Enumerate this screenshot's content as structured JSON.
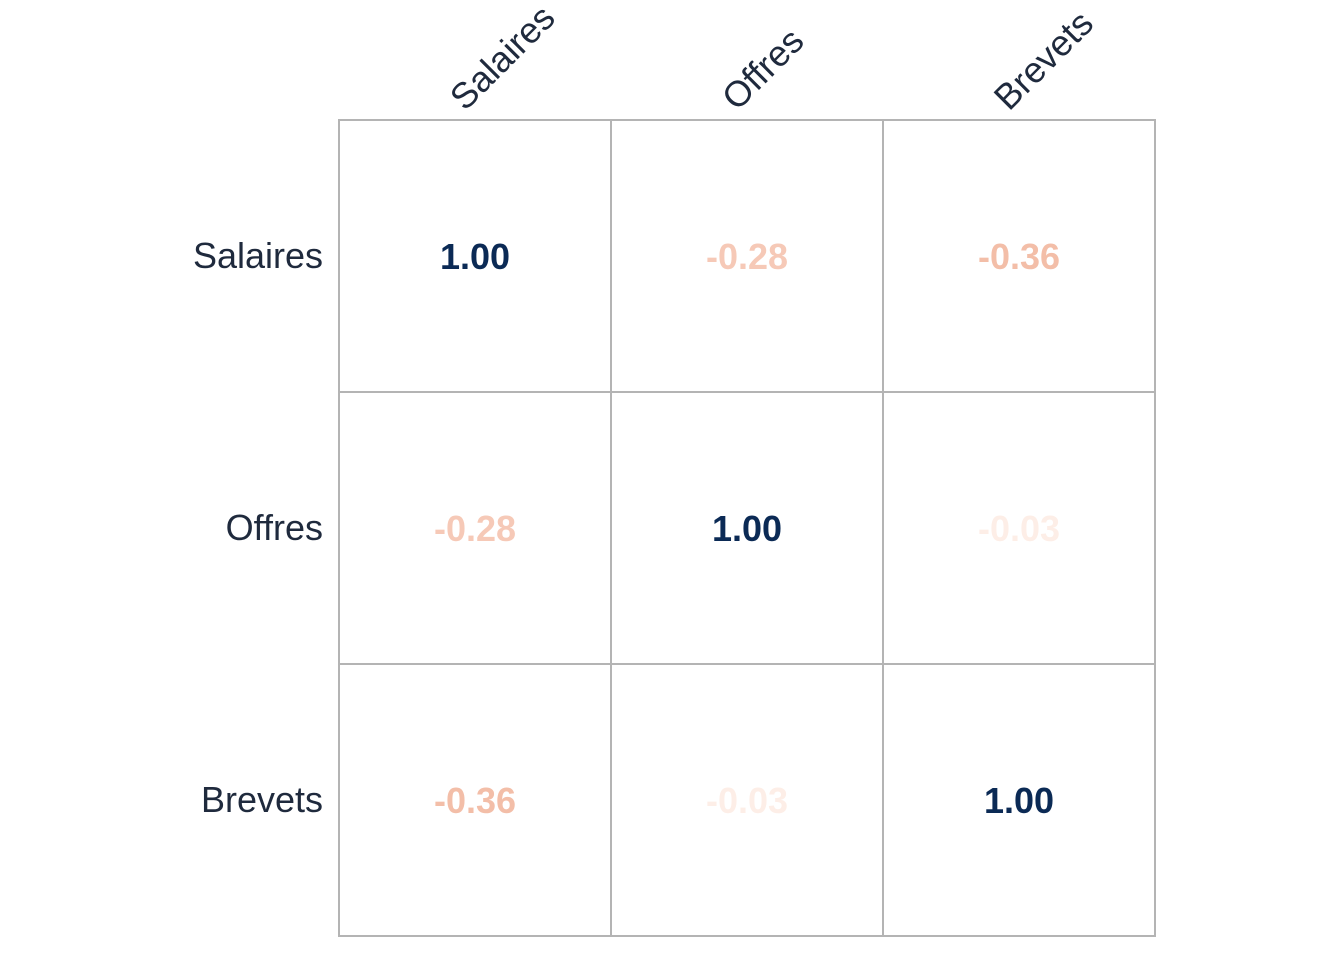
{
  "chart_data": {
    "type": "heatmap",
    "title": "",
    "rows": [
      "Salaires",
      "Offres",
      "Brevets"
    ],
    "columns": [
      "Salaires",
      "Offres",
      "Brevets"
    ],
    "values": [
      [
        "1.00",
        "-0.28",
        "-0.36"
      ],
      [
        "-0.28",
        "1.00",
        "-0.03"
      ],
      [
        "-0.36",
        "-0.03",
        "1.00"
      ]
    ],
    "value_range": [
      -1,
      1
    ],
    "colors": {
      "positive_max": "#0b2a55",
      "negative_max": "#b2182b",
      "neutral": "#ffffff",
      "grid": "#b4b4b4",
      "label": "#1f2a3d"
    },
    "grid": true,
    "legend": "none"
  }
}
